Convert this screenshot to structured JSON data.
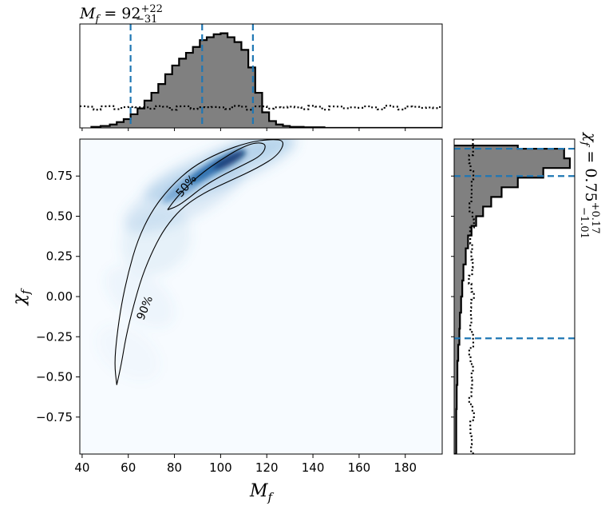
{
  "chart_data": [
    {
      "panel": "marginal-mf",
      "type": "histogram",
      "title_main": "M",
      "title_sub": "f",
      "title_value": " = 92",
      "title_upper": "+22",
      "title_lower": "−31",
      "xlim": [
        39,
        196
      ],
      "bins": [
        {
          "x0": 44,
          "x1": 48,
          "v": 0.01
        },
        {
          "x0": 48,
          "x1": 52,
          "v": 0.02
        },
        {
          "x0": 52,
          "x1": 55,
          "v": 0.035
        },
        {
          "x0": 55,
          "x1": 58,
          "v": 0.06
        },
        {
          "x0": 58,
          "x1": 61,
          "v": 0.09
        },
        {
          "x0": 61,
          "x1": 64,
          "v": 0.14
        },
        {
          "x0": 64,
          "x1": 67,
          "v": 0.2
        },
        {
          "x0": 67,
          "x1": 70,
          "v": 0.28
        },
        {
          "x0": 70,
          "x1": 73,
          "v": 0.36
        },
        {
          "x0": 73,
          "x1": 76,
          "v": 0.45
        },
        {
          "x0": 76,
          "x1": 79,
          "v": 0.55
        },
        {
          "x0": 79,
          "x1": 82,
          "v": 0.64
        },
        {
          "x0": 82,
          "x1": 85,
          "v": 0.71
        },
        {
          "x0": 85,
          "x1": 88,
          "v": 0.77
        },
        {
          "x0": 88,
          "x1": 91,
          "v": 0.83
        },
        {
          "x0": 91,
          "x1": 94,
          "v": 0.9
        },
        {
          "x0": 94,
          "x1": 97,
          "v": 0.93
        },
        {
          "x0": 97,
          "x1": 100,
          "v": 0.96
        },
        {
          "x0": 100,
          "x1": 103,
          "v": 0.97
        },
        {
          "x0": 103,
          "x1": 106,
          "v": 0.93
        },
        {
          "x0": 106,
          "x1": 109,
          "v": 0.88
        },
        {
          "x0": 109,
          "x1": 112,
          "v": 0.8
        },
        {
          "x0": 112,
          "x1": 115,
          "v": 0.62
        },
        {
          "x0": 115,
          "x1": 118,
          "v": 0.36
        },
        {
          "x0": 118,
          "x1": 121,
          "v": 0.16
        },
        {
          "x0": 121,
          "x1": 124,
          "v": 0.07
        },
        {
          "x0": 124,
          "x1": 127,
          "v": 0.035
        },
        {
          "x0": 127,
          "x1": 130,
          "v": 0.02
        },
        {
          "x0": 130,
          "x1": 136,
          "v": 0.01
        },
        {
          "x0": 136,
          "x1": 145,
          "v": 0.006
        }
      ],
      "prior_level": 0.21,
      "quantiles": [
        61,
        92,
        114
      ]
    },
    {
      "panel": "joint-mf-chif",
      "type": "heatmap",
      "xlabel_main": "M",
      "xlabel_sub": "f",
      "ylabel_main": "χ",
      "ylabel_sub": "f",
      "xlim": [
        39,
        196
      ],
      "ylim": [
        -0.98,
        0.98
      ],
      "xticks": [
        "40",
        "60",
        "80",
        "100",
        "120",
        "140",
        "160",
        "180"
      ],
      "xtick_values": [
        40,
        60,
        80,
        100,
        120,
        140,
        160,
        180
      ],
      "yticks": [
        "−0.75",
        "−0.50",
        "−0.25",
        "0.00",
        "0.25",
        "0.50",
        "0.75"
      ],
      "ytick_values": [
        -0.75,
        -0.5,
        -0.25,
        0.0,
        0.25,
        0.5,
        0.75
      ],
      "contours": [
        {
          "label": "50%",
          "label_x": 85,
          "label_y": 0.69,
          "label_rotation": -50,
          "points": [
            [
              77,
              0.54
            ],
            [
              80,
              0.6
            ],
            [
              85,
              0.68
            ],
            [
              92,
              0.77
            ],
            [
              100,
              0.85
            ],
            [
              108,
              0.92
            ],
            [
              115,
              0.96
            ],
            [
              120,
              0.95
            ],
            [
              118,
              0.88
            ],
            [
              110,
              0.82
            ],
            [
              100,
              0.75
            ],
            [
              92,
              0.68
            ],
            [
              86,
              0.61
            ],
            [
              81,
              0.56
            ],
            [
              77,
              0.54
            ]
          ]
        },
        {
          "label": "90%",
          "label_x": 67,
          "label_y": -0.07,
          "label_rotation": -68,
          "points": [
            [
              55,
              -0.55
            ],
            [
              54,
              -0.42
            ],
            [
              55,
              -0.25
            ],
            [
              57,
              -0.05
            ],
            [
              60,
              0.15
            ],
            [
              64,
              0.35
            ],
            [
              70,
              0.53
            ],
            [
              78,
              0.68
            ],
            [
              88,
              0.81
            ],
            [
              100,
              0.9
            ],
            [
              112,
              0.96
            ],
            [
              122,
              0.98
            ],
            [
              128,
              0.97
            ],
            [
              125,
              0.88
            ],
            [
              116,
              0.8
            ],
            [
              104,
              0.72
            ],
            [
              92,
              0.64
            ],
            [
              83,
              0.55
            ],
            [
              76,
              0.43
            ],
            [
              71,
              0.3
            ],
            [
              66,
              0.13
            ],
            [
              62,
              -0.07
            ],
            [
              59,
              -0.25
            ],
            [
              57,
              -0.42
            ],
            [
              55,
              -0.55
            ]
          ]
        }
      ]
    },
    {
      "panel": "marginal-chif",
      "type": "histogram",
      "orientation": "horizontal",
      "title_main": "χ",
      "title_sub": "f",
      "title_value": " = 0.75",
      "title_upper": "+0.17",
      "title_lower": "−1.01",
      "ylim": [
        -0.98,
        0.98
      ],
      "bins": [
        {
          "y0": 0.86,
          "y1": 0.92,
          "v": 0.95
        },
        {
          "y0": 0.92,
          "y1": 0.94,
          "v": 0.55
        },
        {
          "y0": 0.8,
          "y1": 0.86,
          "v": 1.0
        },
        {
          "y0": 0.74,
          "y1": 0.8,
          "v": 0.77
        },
        {
          "y0": 0.68,
          "y1": 0.74,
          "v": 0.55
        },
        {
          "y0": 0.62,
          "y1": 0.68,
          "v": 0.41
        },
        {
          "y0": 0.56,
          "y1": 0.62,
          "v": 0.32
        },
        {
          "y0": 0.5,
          "y1": 0.56,
          "v": 0.25
        },
        {
          "y0": 0.44,
          "y1": 0.5,
          "v": 0.19
        },
        {
          "y0": 0.38,
          "y1": 0.44,
          "v": 0.15
        },
        {
          "y0": 0.3,
          "y1": 0.38,
          "v": 0.12
        },
        {
          "y0": 0.2,
          "y1": 0.3,
          "v": 0.1
        },
        {
          "y0": 0.1,
          "y1": 0.2,
          "v": 0.08
        },
        {
          "y0": 0.0,
          "y1": 0.1,
          "v": 0.07
        },
        {
          "y0": -0.1,
          "y1": 0.0,
          "v": 0.06
        },
        {
          "y0": -0.2,
          "y1": -0.1,
          "v": 0.05
        },
        {
          "y0": -0.3,
          "y1": -0.2,
          "v": 0.045
        },
        {
          "y0": -0.4,
          "y1": -0.3,
          "v": 0.035
        },
        {
          "y0": -0.55,
          "y1": -0.4,
          "v": 0.028
        },
        {
          "y0": -0.7,
          "y1": -0.55,
          "v": 0.022
        },
        {
          "y0": -0.98,
          "y1": -0.7,
          "v": 0.018
        }
      ],
      "prior_level": 0.15,
      "quantiles": [
        -0.26,
        0.75,
        0.92
      ]
    }
  ],
  "colors": {
    "histogram_fill": "#808080",
    "histogram_edge": "#000000",
    "quantile_line": "#1f77b4",
    "heat_low": "#f7fbff",
    "heat_high": "#08306b"
  }
}
